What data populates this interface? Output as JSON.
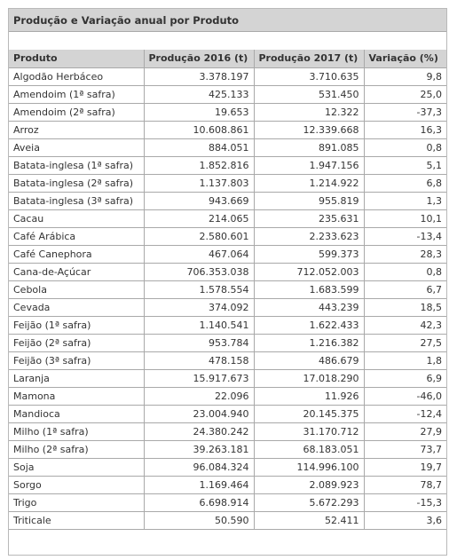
{
  "table": {
    "caption": "Produção e Variação anual por Produto",
    "columns": [
      "Produto",
      "Produção 2016 (t)",
      "Produção 2017 (t)",
      "Variação (%)"
    ],
    "rows": [
      [
        "Algodão Herbáceo",
        "3.378.197",
        "3.710.635",
        "9,8"
      ],
      [
        "Amendoim (1ª safra)",
        "425.133",
        "531.450",
        "25,0"
      ],
      [
        "Amendoim (2ª safra)",
        "19.653",
        "12.322",
        "-37,3"
      ],
      [
        "Arroz",
        "10.608.861",
        "12.339.668",
        "16,3"
      ],
      [
        "Aveia",
        "884.051",
        "891.085",
        "0,8"
      ],
      [
        "Batata-inglesa (1ª safra)",
        "1.852.816",
        "1.947.156",
        "5,1"
      ],
      [
        "Batata-inglesa (2ª safra)",
        "1.137.803",
        "1.214.922",
        "6,8"
      ],
      [
        "Batata-inglesa (3ª safra)",
        "943.669",
        "955.819",
        "1,3"
      ],
      [
        "Cacau",
        "214.065",
        "235.631",
        "10,1"
      ],
      [
        "Café Arábica",
        "2.580.601",
        "2.233.623",
        "-13,4"
      ],
      [
        "Café Canephora",
        "467.064",
        "599.373",
        "28,3"
      ],
      [
        "Cana-de-Açúcar",
        "706.353.038",
        "712.052.003",
        "0,8"
      ],
      [
        "Cebola",
        "1.578.554",
        "1.683.599",
        "6,7"
      ],
      [
        "Cevada",
        "374.092",
        "443.239",
        "18,5"
      ],
      [
        "Feijão (1ª safra)",
        "1.140.541",
        "1.622.433",
        "42,3"
      ],
      [
        "Feijão (2ª safra)",
        "953.784",
        "1.216.382",
        "27,5"
      ],
      [
        "Feijão (3ª safra)",
        "478.158",
        "486.679",
        "1,8"
      ],
      [
        "Laranja",
        "15.917.673",
        "17.018.290",
        "6,9"
      ],
      [
        "Mamona",
        "22.096",
        "11.926",
        "-46,0"
      ],
      [
        "Mandioca",
        "23.004.940",
        "20.145.375",
        "-12,4"
      ],
      [
        "Milho (1ª safra)",
        "24.380.242",
        "31.170.712",
        "27,9"
      ],
      [
        "Milho (2ª safra)",
        "39.263.181",
        "68.183.051",
        "73,7"
      ],
      [
        "Soja",
        "96.084.324",
        "114.996.100",
        "19,7"
      ],
      [
        "Sorgo",
        "1.169.464",
        "2.089.923",
        "78,7"
      ],
      [
        "Trigo",
        "6.698.914",
        "5.672.293",
        "-15,3"
      ],
      [
        "Triticale",
        "50.590",
        "52.411",
        "3,6"
      ]
    ]
  }
}
